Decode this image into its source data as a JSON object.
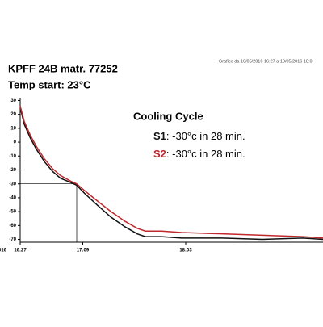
{
  "chart_data": {
    "type": "line",
    "title": "KPFF 24B  matr. 77252",
    "subtitle": "Temp start: 23°C",
    "source_note": "Grafico da 10/05/2016 16:27 a 10/05/2016 18:0",
    "x_edge_label": "016",
    "annotation_title": "Cooling Cycle",
    "annotations": [
      {
        "label": "S1",
        "text": ": -30°c in 28 min."
      },
      {
        "label": "S2",
        "text": ": -30°c in 28 min."
      }
    ],
    "reference": {
      "x": 28,
      "y": -30
    },
    "xlim": [
      0,
      150
    ],
    "xticks": [
      {
        "value": 0,
        "label": "16:27"
      },
      {
        "value": 31,
        "label": "17:09"
      },
      {
        "value": 82,
        "label": "18:03"
      }
    ],
    "ylim": [
      -72,
      32
    ],
    "yticks": [
      30,
      20,
      10,
      0,
      -10,
      -20,
      -30,
      -40,
      -50,
      -60,
      -70
    ],
    "x": [
      0,
      2,
      5,
      8,
      12,
      16,
      20,
      25,
      28,
      32,
      38,
      45,
      52,
      58,
      62,
      70,
      80,
      100,
      120,
      140,
      150
    ],
    "series": [
      {
        "name": "S1",
        "color": "#111111",
        "values": [
          25,
          13,
          3,
          -5,
          -14,
          -21,
          -26,
          -29,
          -31,
          -37,
          -45,
          -54,
          -61,
          -66,
          -68,
          -68,
          -69,
          -69,
          -70,
          -69,
          -70
        ]
      },
      {
        "name": "S2",
        "color": "#c0282d",
        "values": [
          26,
          15,
          5,
          -3,
          -12,
          -19,
          -24,
          -28,
          -30,
          -35,
          -42,
          -50,
          -57,
          -62,
          -64,
          -64,
          -65,
          -66,
          -67,
          -68,
          -69
        ]
      }
    ]
  }
}
